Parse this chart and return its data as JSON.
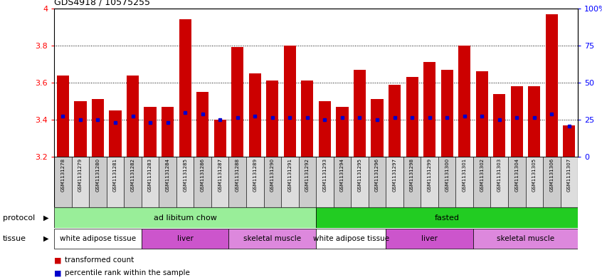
{
  "title": "GDS4918 / 10575255",
  "samples": [
    "GSM1131278",
    "GSM1131279",
    "GSM1131280",
    "GSM1131281",
    "GSM1131282",
    "GSM1131283",
    "GSM1131284",
    "GSM1131285",
    "GSM1131286",
    "GSM1131287",
    "GSM1131288",
    "GSM1131289",
    "GSM1131290",
    "GSM1131291",
    "GSM1131292",
    "GSM1131293",
    "GSM1131294",
    "GSM1131295",
    "GSM1131296",
    "GSM1131297",
    "GSM1131298",
    "GSM1131299",
    "GSM1131300",
    "GSM1131301",
    "GSM1131302",
    "GSM1131303",
    "GSM1131304",
    "GSM1131305",
    "GSM1131306",
    "GSM1131307"
  ],
  "bar_values": [
    3.64,
    3.5,
    3.51,
    3.45,
    3.64,
    3.47,
    3.47,
    3.94,
    3.55,
    3.4,
    3.79,
    3.65,
    3.61,
    3.8,
    3.61,
    3.5,
    3.47,
    3.67,
    3.51,
    3.59,
    3.63,
    3.71,
    3.67,
    3.8,
    3.66,
    3.54,
    3.58,
    3.58,
    3.97,
    3.37
  ],
  "percentile_values": [
    3.42,
    3.4,
    3.4,
    3.385,
    3.42,
    3.385,
    3.385,
    3.44,
    3.43,
    3.4,
    3.41,
    3.42,
    3.41,
    3.41,
    3.41,
    3.4,
    3.41,
    3.41,
    3.4,
    3.41,
    3.41,
    3.41,
    3.41,
    3.42,
    3.42,
    3.4,
    3.41,
    3.41,
    3.43,
    3.365
  ],
  "ymin": 3.2,
  "ymax": 4.0,
  "yticks": [
    3.2,
    3.4,
    3.6,
    3.8,
    4.0
  ],
  "ytick_labels": [
    "3.2",
    "3.4",
    "3.6",
    "3.8",
    "4"
  ],
  "right_yticks": [
    0,
    25,
    50,
    75,
    100
  ],
  "right_ytick_labels": [
    "0",
    "25",
    "50",
    "75",
    "100%"
  ],
  "bar_color": "#cc0000",
  "dot_color": "#0000cc",
  "protocol_groups": [
    {
      "label": "ad libitum chow",
      "start": 0,
      "end": 15,
      "color": "#99ee99"
    },
    {
      "label": "fasted",
      "start": 15,
      "end": 30,
      "color": "#22cc22"
    }
  ],
  "tissue_groups": [
    {
      "label": "white adipose tissue",
      "start": 0,
      "end": 5,
      "color": "#ffffff"
    },
    {
      "label": "liver",
      "start": 5,
      "end": 10,
      "color": "#cc55cc"
    },
    {
      "label": "skeletal muscle",
      "start": 10,
      "end": 15,
      "color": "#dd88dd"
    },
    {
      "label": "white adipose tissue",
      "start": 15,
      "end": 19,
      "color": "#ffffff"
    },
    {
      "label": "liver",
      "start": 19,
      "end": 24,
      "color": "#cc55cc"
    },
    {
      "label": "skeletal muscle",
      "start": 24,
      "end": 30,
      "color": "#dd88dd"
    }
  ]
}
